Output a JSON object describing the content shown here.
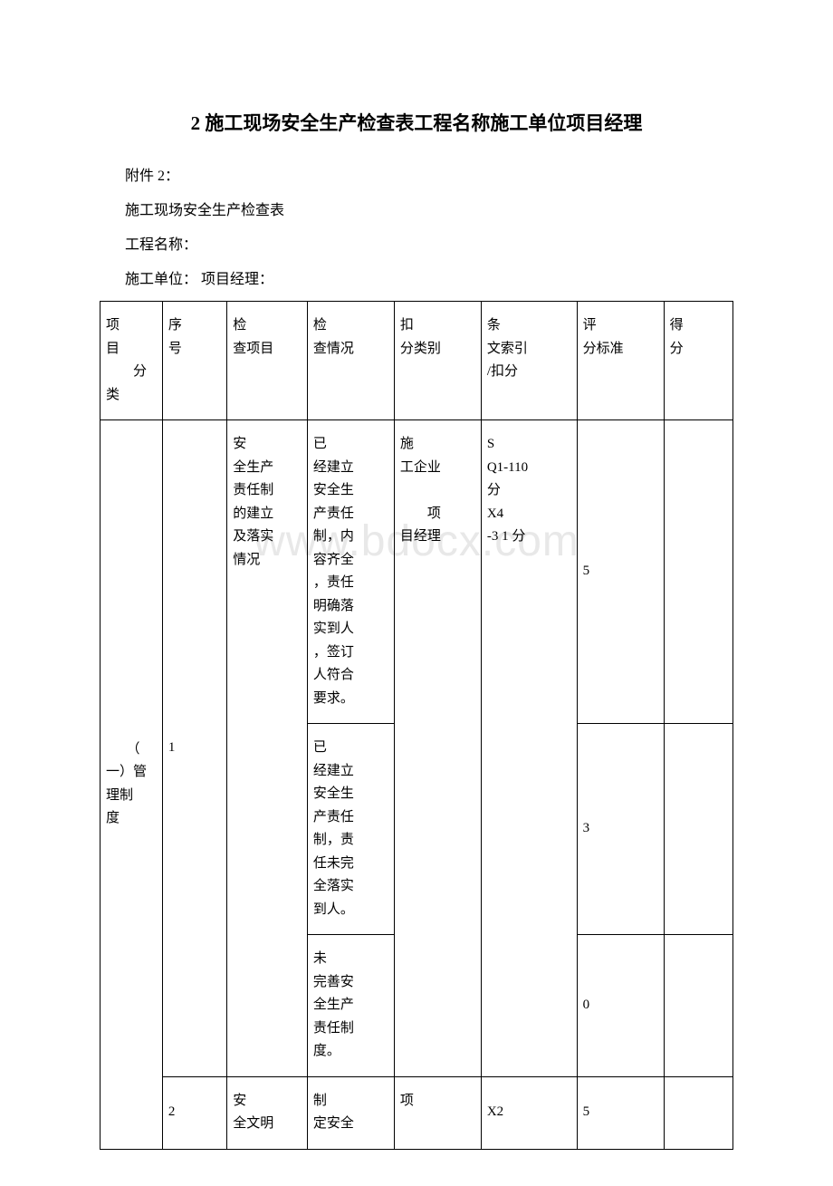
{
  "title": "2 施工现场安全生产检查表工程名称施工单位项目经理",
  "meta": {
    "attachment": "附件 2：",
    "table_name": "施工现场安全生产检查表",
    "project_name_label": "工程名称：",
    "unit_and_manager": "施工单位：  项目经理："
  },
  "watermark": "www.bdocx.com",
  "table": {
    "headers": {
      "category_indent": "项",
      "category_rest": "目\n　　分\n类",
      "seq_indent": "序",
      "seq_rest": "号",
      "item_indent": "检",
      "item_rest": "查项目",
      "situation_indent": "检",
      "situation_rest": "查情况",
      "deduct_cat_indent": "扣",
      "deduct_cat_rest": "分类别",
      "reference_indent": "条",
      "reference_rest": "文索引\n/扣分",
      "standard_indent": "评",
      "standard_rest": "分标准",
      "score_indent": "得",
      "score_rest": "分"
    },
    "rows": {
      "r1_category": "　　（\n一）管\n理制\n度",
      "r1_seq": "1",
      "r1_item_indent": "安",
      "r1_item_rest": "全生产\n责任制\n的建立\n及落实\n情况",
      "r1_situ1_indent": "已",
      "r1_situ1_rest": "经建立\n安全生\n产责任\n制，内\n容齐全\n，责任\n明确落\n实到人\n，签订\n人符合\n要求。",
      "r1_situ2_indent": "已",
      "r1_situ2_rest": "经建立\n安全生\n产责任\n制，责\n任未完\n全落实\n到人。",
      "r1_situ3_indent": "未",
      "r1_situ3_rest": "完善安\n全生产\n责任制\n度。",
      "r1_dedcat_indent": "施",
      "r1_dedcat_rest": "工企业\n\n　　项\n目经理",
      "r1_ref_indent1": "S",
      "r1_ref_rest1": "Q1-110\n分",
      "r1_ref_indent2": "X4",
      "r1_ref_rest2": "-3 1 分",
      "r1_std1": "5",
      "r1_std2": "3",
      "r1_std3": "0",
      "r2_seq": "2",
      "r2_item_indent": "安",
      "r2_item_rest": "全文明",
      "r2_situ_indent": "制",
      "r2_situ_rest": "定安全",
      "r2_dedcat_indent": "项",
      "r2_ref": "X2",
      "r2_std": "5"
    }
  },
  "style": {
    "background_color": "#ffffff",
    "border_color": "#000000",
    "watermark_color": "#e8e8e8",
    "title_fontsize": 21,
    "body_fontsize": 15,
    "meta_fontsize": 16
  }
}
